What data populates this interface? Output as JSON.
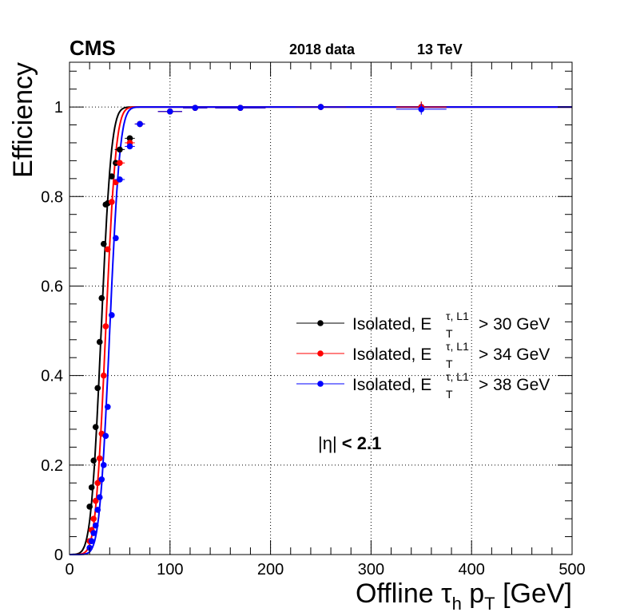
{
  "header": {
    "experiment": "CMS",
    "dataset": "2018 data",
    "energy": "13 TeV"
  },
  "region_label": {
    "prefix": "|η|",
    "suffix": " < 2.1"
  },
  "chart_data": {
    "type": "scatter",
    "xlabel": {
      "main": "Offline τ",
      "sub1": "h",
      "mid": " p",
      "sub2": "T",
      "unit": " [GeV]"
    },
    "ylabel": "Efficiency",
    "xlim": [
      0,
      500
    ],
    "ylim": [
      0,
      1.1
    ],
    "xticks": [
      0,
      100,
      200,
      300,
      400,
      500
    ],
    "yticks": [
      0,
      0.2,
      0.4,
      0.6,
      0.8,
      1
    ],
    "xtick_labels": [
      "0",
      "100",
      "200",
      "300",
      "400",
      "500"
    ],
    "ytick_labels": [
      "0",
      "0.2",
      "0.4",
      "0.6",
      "0.8",
      "1"
    ],
    "grid": true,
    "legend_position": "center-right",
    "series": [
      {
        "name": "Isolated, E_T^{τ, L1} > 30 GeV",
        "legend": {
          "pre": "Isolated, E",
          "sup": "τ, L1",
          "sub": "T",
          "post": "> 30 GeV"
        },
        "color": "#000000",
        "fit": {
          "mu": 31.5,
          "sigma": 8.0
        },
        "x": [
          20,
          22,
          24,
          26,
          28,
          30,
          32,
          34,
          36,
          38,
          42,
          46,
          50,
          60,
          70,
          100,
          125,
          170,
          250,
          350
        ],
        "y": [
          0.107,
          0.15,
          0.21,
          0.285,
          0.372,
          0.475,
          0.573,
          0.694,
          0.782,
          0.785,
          0.845,
          0.875,
          0.905,
          0.93,
          0.962,
          0.99,
          0.998,
          0.998,
          1.0,
          1.0
        ]
      },
      {
        "name": "Isolated, E_T^{τ, L1} > 34 GeV",
        "legend": {
          "pre": "Isolated, E",
          "sup": "τ, L1",
          "sub": "T",
          "post": "> 34 GeV"
        },
        "color": "#ff0000",
        "fit": {
          "mu": 36.0,
          "sigma": 8.0
        },
        "x": [
          20,
          22,
          24,
          26,
          28,
          30,
          32,
          34,
          36,
          38,
          42,
          46,
          50,
          60,
          70,
          100,
          125,
          170,
          250,
          350
        ],
        "y": [
          0.03,
          0.055,
          0.08,
          0.12,
          0.16,
          0.215,
          0.27,
          0.4,
          0.51,
          0.682,
          0.788,
          0.832,
          0.875,
          0.92,
          0.962,
          0.99,
          0.998,
          0.998,
          1.0,
          1.0
        ]
      },
      {
        "name": "Isolated, E_T^{τ, L1} > 38 GeV",
        "legend": {
          "pre": "Isolated, E",
          "sup": "τ, L1",
          "sub": "T",
          "post": "> 38 GeV"
        },
        "color": "#0000ff",
        "fit": {
          "mu": 40.0,
          "sigma": 8.0
        },
        "x": [
          20,
          22,
          24,
          26,
          28,
          30,
          32,
          34,
          36,
          38,
          42,
          46,
          50,
          60,
          70,
          100,
          125,
          170,
          250,
          350
        ],
        "y": [
          0.015,
          0.03,
          0.048,
          0.065,
          0.1,
          0.128,
          0.168,
          0.2,
          0.265,
          0.33,
          0.535,
          0.707,
          0.838,
          0.912,
          0.962,
          0.99,
          0.998,
          0.998,
          1.0,
          0.995
        ]
      }
    ]
  }
}
